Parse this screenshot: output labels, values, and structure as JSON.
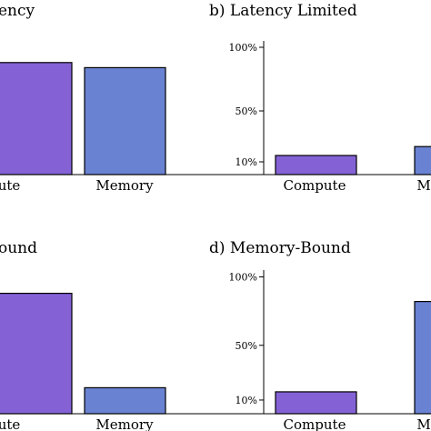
{
  "colors": {
    "compute": "#8462d6",
    "memory": "#6a82d2"
  },
  "chart_data": [
    {
      "type": "bar",
      "title": "a) Efficiency",
      "visible_title": "ency",
      "categories": [
        "Compute",
        "Memory"
      ],
      "visible_categories": [
        "ute",
        "Memory"
      ],
      "values": [
        88,
        84
      ],
      "ylim": [
        0,
        105
      ],
      "yticks": [],
      "ytick_labels": []
    },
    {
      "type": "bar",
      "title": "b) Latency Limited",
      "visible_title": "b) Latency Limited",
      "categories": [
        "Compute",
        "Memory"
      ],
      "visible_categories": [
        "Compute",
        "M"
      ],
      "values": [
        15,
        22
      ],
      "ylim": [
        0,
        105
      ],
      "yticks": [
        100,
        50,
        10
      ],
      "ytick_labels": [
        "100%",
        "50%",
        "10%"
      ]
    },
    {
      "type": "bar",
      "title": "c) Compute-Bound",
      "visible_title": "ound",
      "categories": [
        "Compute",
        "Memory"
      ],
      "visible_categories": [
        "ute",
        "Memory"
      ],
      "values": [
        88,
        19
      ],
      "ylim": [
        0,
        105
      ],
      "yticks": [],
      "ytick_labels": []
    },
    {
      "type": "bar",
      "title": "d) Memory-Bound",
      "visible_title": "d) Memory-Bound",
      "categories": [
        "Compute",
        "Memory"
      ],
      "visible_categories": [
        "Compute",
        "M"
      ],
      "values": [
        16,
        82
      ],
      "ylim": [
        0,
        105
      ],
      "yticks": [
        100,
        50,
        10
      ],
      "ytick_labels": [
        "100%",
        "50%",
        "10%"
      ]
    }
  ]
}
